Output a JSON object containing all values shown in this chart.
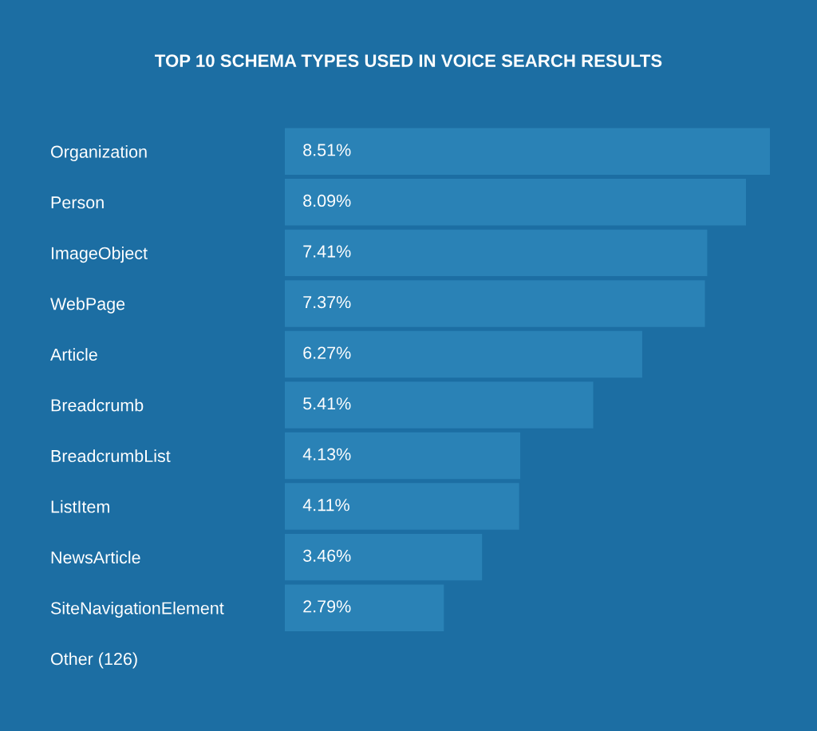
{
  "chart_data": {
    "type": "bar",
    "orientation": "horizontal",
    "title": "TOP 10 SCHEMA TYPES USED IN VOICE SEARCH RESULTS",
    "categories": [
      "Organization",
      "Person",
      "ImageObject",
      "WebPage",
      "Article",
      "Breadcrumb",
      "BreadcrumbList",
      "ListItem",
      "NewsArticle",
      "SiteNavigationElement",
      "Other (126)"
    ],
    "values": [
      8.51,
      8.09,
      7.41,
      7.37,
      6.27,
      5.41,
      4.13,
      4.11,
      3.46,
      2.79,
      null
    ],
    "value_labels": [
      "8.51%",
      "8.09%",
      "7.41%",
      "7.37%",
      "6.27%",
      "5.41%",
      "4.13%",
      "4.11%",
      "3.46%",
      "2.79%",
      null
    ],
    "color": "#2a82b6",
    "grid": false,
    "legend": false
  }
}
